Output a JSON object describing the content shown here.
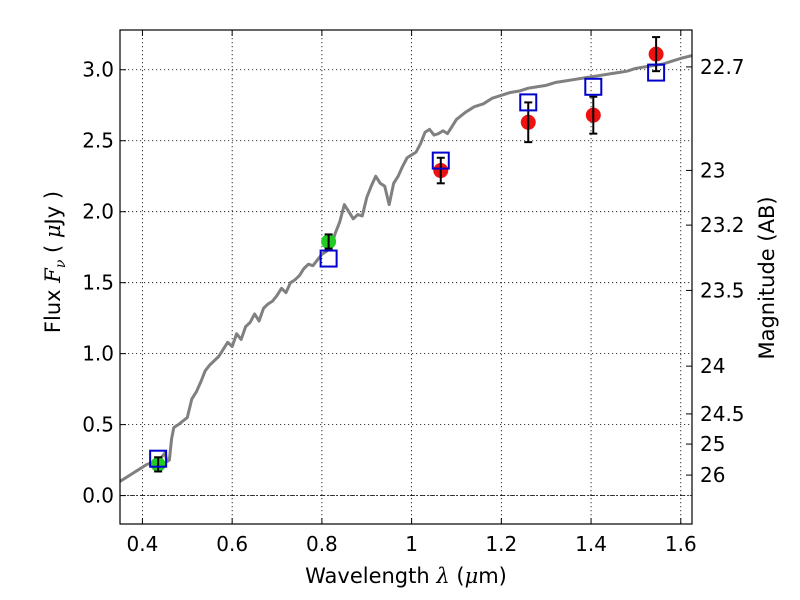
{
  "chart_data": {
    "type": "scatter",
    "xlabel": "Wavelength",
    "xlabel_symbol": "λ",
    "xlabel_unit_open": " (",
    "xlabel_unit_mu": "μ",
    "xlabel_unit_rest": "m)",
    "ylabel_prefix": "Flux",
    "ylabel_symbol": "F",
    "ylabel_sub": "ν",
    "ylabel_unit_open": " ( ",
    "ylabel_unit_mu": "μ",
    "ylabel_unit_rest": "Jy )",
    "y2label": "Magnitude (AB)",
    "xlim": [
      0.35,
      1.625
    ],
    "ylim": [
      -0.2,
      3.28
    ],
    "grid": true,
    "x_ticks": [
      {
        "v": 0.4,
        "label": "0.4"
      },
      {
        "v": 0.6,
        "label": "0.6"
      },
      {
        "v": 0.8,
        "label": "0.8"
      },
      {
        "v": 1.0,
        "label": "1"
      },
      {
        "v": 1.2,
        "label": "1.2"
      },
      {
        "v": 1.4,
        "label": "1.4"
      },
      {
        "v": 1.6,
        "label": "1.6"
      }
    ],
    "y_ticks": [
      {
        "v": 0.0,
        "label": "0.0"
      },
      {
        "v": 0.5,
        "label": "0.5"
      },
      {
        "v": 1.0,
        "label": "1.0"
      },
      {
        "v": 1.5,
        "label": "1.5"
      },
      {
        "v": 2.0,
        "label": "2.0"
      },
      {
        "v": 2.5,
        "label": "2.5"
      },
      {
        "v": 3.0,
        "label": "3.0"
      }
    ],
    "y2_ticks": [
      {
        "mag": 22.7,
        "label": "22.7"
      },
      {
        "mag": 23.0,
        "label": "23"
      },
      {
        "mag": 23.2,
        "label": "23.2"
      },
      {
        "mag": 23.5,
        "label": "23.5"
      },
      {
        "mag": 24.0,
        "label": "24"
      },
      {
        "mag": 24.5,
        "label": "24.5"
      },
      {
        "mag": 25.0,
        "label": "25"
      },
      {
        "mag": 26.0,
        "label": "26"
      }
    ],
    "colors": {
      "model": "#808080",
      "green": "#22cc22",
      "red": "#ee1111",
      "box": "#0000cc"
    },
    "model": {
      "x": [
        0.35,
        0.36,
        0.37,
        0.38,
        0.39,
        0.4,
        0.41,
        0.42,
        0.43,
        0.44,
        0.45,
        0.455,
        0.46,
        0.465,
        0.47,
        0.48,
        0.5,
        0.51,
        0.52,
        0.53,
        0.54,
        0.55,
        0.56,
        0.57,
        0.58,
        0.59,
        0.6,
        0.61,
        0.62,
        0.63,
        0.64,
        0.65,
        0.66,
        0.67,
        0.68,
        0.69,
        0.7,
        0.71,
        0.72,
        0.73,
        0.74,
        0.75,
        0.76,
        0.77,
        0.78,
        0.79,
        0.8,
        0.81,
        0.82,
        0.83,
        0.84,
        0.85,
        0.86,
        0.87,
        0.88,
        0.89,
        0.9,
        0.91,
        0.92,
        0.93,
        0.94,
        0.95,
        0.96,
        0.97,
        0.98,
        0.99,
        1.0,
        1.01,
        1.02,
        1.03,
        1.04,
        1.05,
        1.06,
        1.07,
        1.08,
        1.09,
        1.1,
        1.12,
        1.14,
        1.16,
        1.18,
        1.2,
        1.22,
        1.24,
        1.26,
        1.28,
        1.3,
        1.32,
        1.34,
        1.36,
        1.38,
        1.4,
        1.42,
        1.44,
        1.46,
        1.48,
        1.5,
        1.52,
        1.54,
        1.56,
        1.58,
        1.6,
        1.625
      ],
      "y": [
        0.1,
        0.12,
        0.14,
        0.16,
        0.18,
        0.2,
        0.22,
        0.23,
        0.24,
        0.26,
        0.3,
        0.24,
        0.25,
        0.4,
        0.48,
        0.5,
        0.55,
        0.68,
        0.73,
        0.8,
        0.88,
        0.92,
        0.95,
        0.98,
        1.03,
        1.08,
        1.05,
        1.14,
        1.1,
        1.19,
        1.22,
        1.28,
        1.23,
        1.32,
        1.35,
        1.37,
        1.41,
        1.46,
        1.43,
        1.5,
        1.52,
        1.55,
        1.6,
        1.63,
        1.62,
        1.66,
        1.7,
        1.72,
        1.75,
        1.85,
        1.93,
        2.05,
        2.0,
        1.95,
        1.98,
        1.97,
        2.1,
        2.18,
        2.25,
        2.2,
        2.18,
        2.05,
        2.2,
        2.25,
        2.32,
        2.38,
        2.4,
        2.42,
        2.48,
        2.56,
        2.58,
        2.54,
        2.55,
        2.57,
        2.55,
        2.6,
        2.65,
        2.7,
        2.74,
        2.76,
        2.8,
        2.82,
        2.84,
        2.85,
        2.87,
        2.88,
        2.89,
        2.91,
        2.92,
        2.93,
        2.94,
        2.95,
        2.96,
        2.97,
        2.98,
        2.99,
        3.01,
        3.02,
        3.03,
        3.04,
        3.06,
        3.08,
        3.1
      ]
    },
    "green_points": [
      {
        "x": 0.435,
        "y": 0.22,
        "yerr": 0.05
      },
      {
        "x": 0.815,
        "y": 1.79,
        "yerr": 0.05
      }
    ],
    "red_points": [
      {
        "x": 1.065,
        "y": 2.29,
        "yerr": 0.09
      },
      {
        "x": 1.26,
        "y": 2.63,
        "yerr": 0.14
      },
      {
        "x": 1.405,
        "y": 2.68,
        "yerr": 0.13
      },
      {
        "x": 1.545,
        "y": 3.11,
        "yerr": 0.12
      }
    ],
    "synthetic_boxes": [
      {
        "x": 0.435,
        "y": 0.26
      },
      {
        "x": 0.815,
        "y": 1.67
      },
      {
        "x": 1.065,
        "y": 2.36
      },
      {
        "x": 1.26,
        "y": 2.77
      },
      {
        "x": 1.405,
        "y": 2.88
      },
      {
        "x": 1.545,
        "y": 2.98
      }
    ]
  }
}
